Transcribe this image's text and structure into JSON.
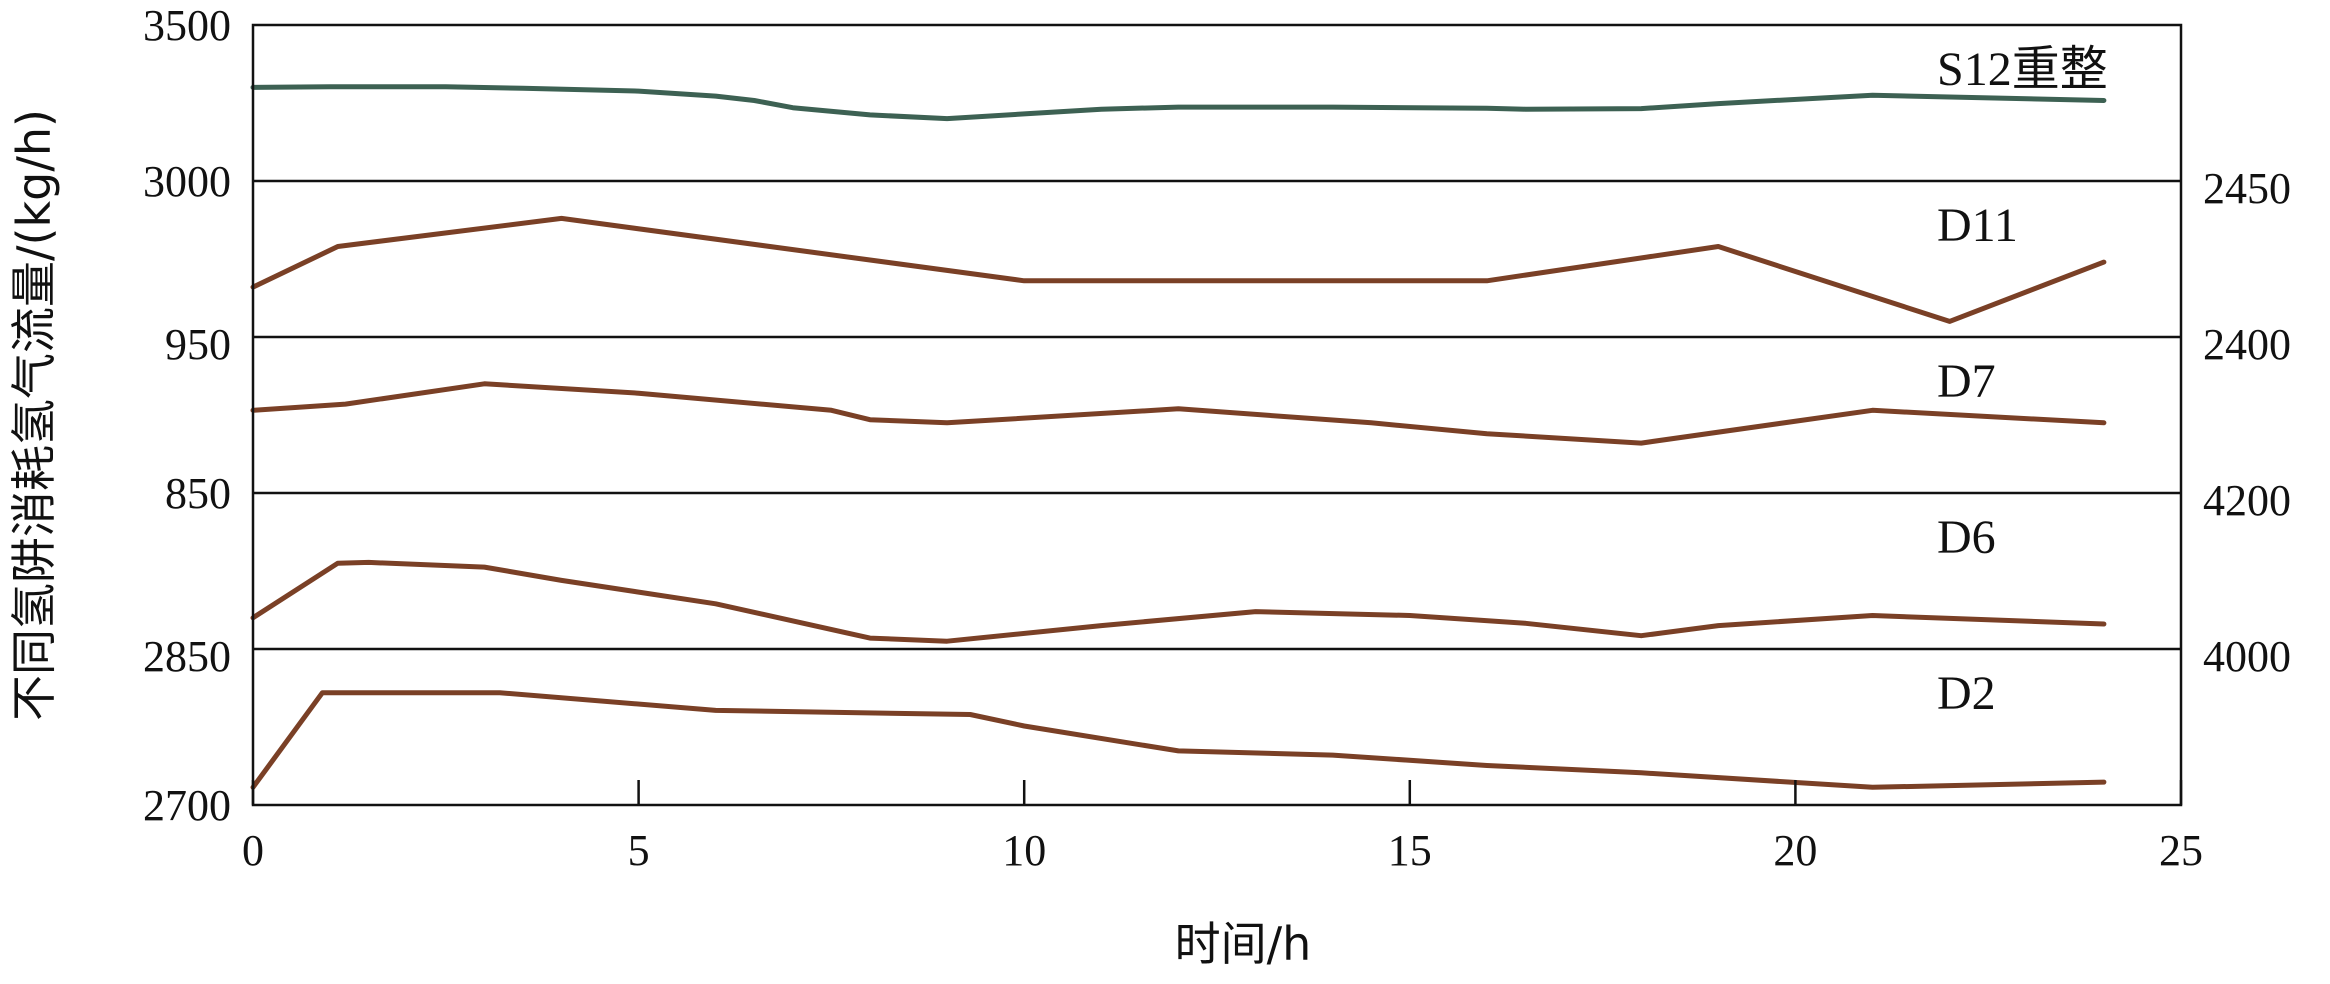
{
  "chart_data": {
    "type": "line",
    "xlabel": "时间/h",
    "ylabel": "不同氢阱消耗氢气流量/(kg/h)",
    "xlim": [
      0,
      25
    ],
    "x_ticks": [
      "0",
      "5",
      "10",
      "15",
      "20",
      "25"
    ],
    "grid": false,
    "panels": [
      {
        "name": "S12重整",
        "color": "#3d6153",
        "axis_side": "left",
        "ylim": [
          3000,
          3500
        ],
        "tick_labels": [
          "3500",
          "3000"
        ],
        "x": [
          0,
          1,
          2.5,
          3.5,
          5,
          6,
          6.5,
          7,
          8,
          9,
          10,
          11,
          12,
          14,
          16,
          16.5,
          18,
          19,
          21,
          24
        ],
        "values": [
          3300,
          3302,
          3302,
          3297,
          3288,
          3272,
          3258,
          3235,
          3212,
          3200,
          3215,
          3230,
          3237,
          3237,
          3233,
          3230,
          3232,
          3248,
          3275,
          3258
        ]
      },
      {
        "name": "D11",
        "color": "#7a4026",
        "axis_side": "right",
        "ylim": [
          2400,
          2450
        ],
        "tick_labels": [
          "2450",
          "2400"
        ],
        "x": [
          0,
          1.1,
          4,
          10,
          16,
          19,
          22,
          24
        ],
        "values": [
          2416,
          2429,
          2438,
          2418,
          2418,
          2429,
          2405,
          2424
        ]
      },
      {
        "name": "D7",
        "color": "#7a4026",
        "axis_side": "left",
        "ylim": [
          850,
          950
        ],
        "tick_labels": [
          "950",
          "850"
        ],
        "x": [
          0,
          1.2,
          3,
          5,
          7.5,
          8,
          9,
          12,
          14.5,
          16,
          18,
          21,
          24
        ],
        "values": [
          903,
          907,
          920,
          914,
          903,
          897,
          895,
          904,
          895,
          888,
          882,
          903,
          895
        ]
      },
      {
        "name": "D6",
        "color": "#7a4026",
        "axis_side": "right",
        "ylim": [
          4000,
          4200
        ],
        "tick_labels": [
          "4200",
          "4000"
        ],
        "x": [
          0,
          1.1,
          1.5,
          3,
          4,
          6,
          8,
          9,
          11,
          13,
          15,
          16.5,
          18,
          19,
          21,
          24
        ],
        "values": [
          4040,
          4110,
          4111,
          4105,
          4088,
          4058,
          4014,
          4010,
          4030,
          4048,
          4043,
          4033,
          4017,
          4030,
          4043,
          4032
        ]
      },
      {
        "name": "D2",
        "color": "#7a4026",
        "axis_side": "left",
        "ylim": [
          2700,
          2850
        ],
        "tick_labels": [
          "2850",
          "2700"
        ],
        "x": [
          0,
          0.9,
          3.2,
          6,
          9.3,
          10,
          12,
          14,
          16,
          18,
          21,
          24
        ],
        "values": [
          2717,
          2808,
          2808,
          2791,
          2787,
          2776,
          2752,
          2748,
          2738,
          2731,
          2717,
          2722
        ]
      }
    ]
  }
}
